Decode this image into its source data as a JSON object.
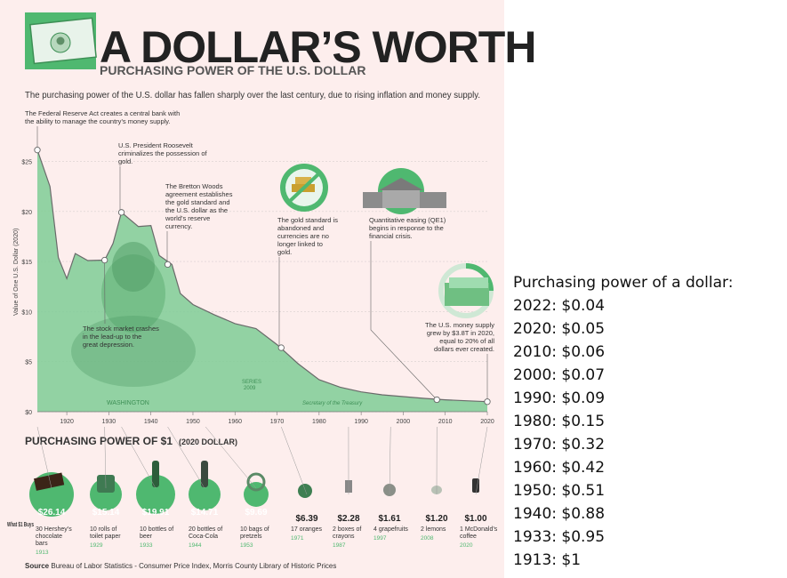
{
  "poster": {
    "title": "A DOLLAR’S WORTH",
    "subtitle": "PURCHASING POWER OF THE U.S. DOLLAR",
    "intro": "The purchasing power of the U.S. dollar has fallen sharply over the last century, due to rising inflation and money supply.",
    "source_label": "Source",
    "source_text": "Bureau of Labor Statistics - Consumer Price Index, Morris County Library of Historic Prices",
    "note_series": "SERIES",
    "note_year": "2009",
    "note_washington": "WASHINGTON",
    "note_secretary": "Secretary of the Treasury",
    "colors": {
      "green": "#4fb870",
      "light_green": "#9fdcb0",
      "pink": "#fdeeed",
      "dark": "#222222",
      "text": "#333333"
    }
  },
  "chart_data": {
    "type": "area",
    "ylabel": "Value of One U.S. Dollar (2020)",
    "x_ticks": [
      "1920",
      "1930",
      "1940",
      "1950",
      "1960",
      "1970",
      "1980",
      "1990",
      "2000",
      "2010",
      "2020"
    ],
    "y_ticks": [
      "$0",
      "$5",
      "$10",
      "$15",
      "$20",
      "$25"
    ],
    "xlim": [
      1913,
      2020
    ],
    "ylim": [
      0,
      27
    ],
    "grid": true,
    "x": [
      1913,
      1916,
      1918,
      1920,
      1922,
      1925,
      1929,
      1931,
      1933,
      1937,
      1940,
      1942,
      1945,
      1947,
      1950,
      1955,
      1960,
      1965,
      1970,
      1975,
      1980,
      1985,
      1990,
      1995,
      2000,
      2005,
      2010,
      2015,
      2020
    ],
    "values": [
      26.14,
      22.5,
      15.4,
      13.3,
      15.8,
      15.1,
      15.14,
      16.8,
      19.91,
      18.5,
      18.6,
      15.6,
      14.71,
      11.8,
      10.7,
      9.7,
      8.8,
      8.3,
      6.7,
      4.8,
      3.2,
      2.45,
      1.98,
      1.69,
      1.51,
      1.33,
      1.19,
      1.09,
      1.0
    ],
    "annotations": [
      {
        "year": 1913,
        "value": 26.14,
        "text": "The Federal Reserve Act creates a central bank with the ability to manage the country’s money supply."
      },
      {
        "year": 1933,
        "value": 19.91,
        "text": "U.S. President Roosevelt criminalizes the possession of gold."
      },
      {
        "year": 1929,
        "value": 15.14,
        "text": "The stock market crashes in the lead-up to the great depression."
      },
      {
        "year": 1944,
        "value": 14.71,
        "text": "The Bretton Woods agreement establishes the gold standard and the U.S. dollar as the world’s reserve currency."
      },
      {
        "year": 1971,
        "value": 6.39,
        "text": "The gold standard is abandoned and currencies are no longer linked to gold."
      },
      {
        "year": 2008,
        "value": 1.2,
        "text": "Quantitative easing (QE1) begins in response to the financial crisis."
      },
      {
        "year": 2020,
        "value": 1.0,
        "text": "The U.S. money supply grew by $3.8T in 2020, equal to 20% of all dollars ever created."
      }
    ]
  },
  "buys": {
    "heading": "PURCHASING POWER OF $1",
    "heading_sub": "(2020 DOLLAR)",
    "row_label": "What $1 Buys",
    "items": [
      {
        "value": "$26.14",
        "desc": "30 Hershey’s chocolate bars",
        "year": "1913",
        "icon": "chocolate-bar-icon"
      },
      {
        "value": "$15.14",
        "desc": "10 rolls of toilet paper",
        "year": "1929",
        "icon": "toilet-paper-icon"
      },
      {
        "value": "$19.91",
        "desc": "10 bottles of beer",
        "year": "1933",
        "icon": "beer-bottle-icon"
      },
      {
        "value": "$14.71",
        "desc": "20 bottles of Coca-Cola",
        "year": "1944",
        "icon": "cola-bottle-icon"
      },
      {
        "value": "$9.69",
        "desc": "10 bags of pretzels",
        "year": "1953",
        "icon": "pretzel-icon"
      },
      {
        "value": "$6.39",
        "desc": "17 oranges",
        "year": "1971",
        "icon": "orange-icon"
      },
      {
        "value": "$2.28",
        "desc": "2 boxes of crayons",
        "year": "1987",
        "icon": "crayon-icon"
      },
      {
        "value": "$1.61",
        "desc": "4 grapefruits",
        "year": "1997",
        "icon": "grapefruit-icon"
      },
      {
        "value": "$1.20",
        "desc": "2 lemons",
        "year": "2008",
        "icon": "lemon-icon"
      },
      {
        "value": "$1.00",
        "desc": "1 McDonald’s coffee",
        "year": "2020",
        "icon": "coffee-cup-icon"
      }
    ]
  },
  "side_list": {
    "heading": "Purchasing power of a dollar:",
    "items": [
      "2022: $0.04",
      "2020: $0.05",
      "2010: $0.06",
      "2000: $0.07",
      "1990: $0.09",
      "1980: $0.15",
      "1970: $0.32",
      "1960: $0.42",
      "1950: $0.51",
      "1940: $0.88",
      "1933: $0.95",
      "1913: $1"
    ]
  }
}
